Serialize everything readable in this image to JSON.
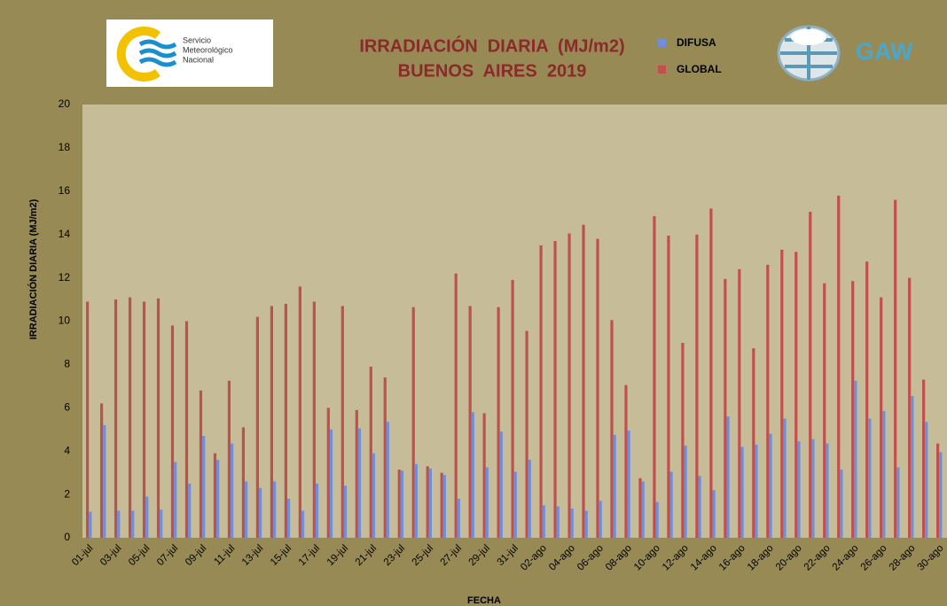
{
  "logos": {
    "smn": [
      "Servicio",
      "Meteorológico",
      "Nacional"
    ],
    "gaw": "GAW"
  },
  "chart_data": {
    "type": "bar",
    "title": "IRRADIACIÓN  DIARIA  (MJ/m2)",
    "subtitle": "BUENOS  AIRES  2019",
    "y_label": "IRRADIACIÓN DIARIA (MJ/m2)",
    "x_label": "FECHA",
    "categories": [
      "01-jul",
      null,
      "03-jul",
      null,
      "05-jul",
      null,
      "07-jul",
      null,
      "09-jul",
      null,
      "11-jul",
      null,
      "13-jul",
      null,
      "15-jul",
      null,
      "17-jul",
      null,
      "19-jul",
      null,
      "21-jul",
      null,
      "23-jul",
      null,
      "25-jul",
      null,
      "27-jul",
      null,
      "29-jul",
      null,
      "31-jul",
      null,
      "02-ago",
      null,
      "04-ago",
      null,
      "06-ago",
      null,
      "08-ago",
      null,
      "10-ago",
      null,
      "12-ago",
      null,
      "14-ago",
      null,
      "16-ago",
      null,
      "18-ago",
      null,
      "20-ago",
      null,
      "22-ago",
      null,
      "24-ago",
      null,
      "26-ago",
      null,
      "28-ago",
      null,
      "30-ago"
    ],
    "series": [
      {
        "name": "DIFUSA",
        "color": "#6f8fd8",
        "values": [
          1.2,
          5.2,
          1.25,
          1.25,
          1.9,
          1.3,
          3.5,
          2.5,
          4.7,
          3.6,
          4.35,
          2.6,
          2.3,
          2.6,
          1.8,
          1.25,
          2.5,
          5.0,
          2.4,
          5.05,
          3.9,
          5.35,
          3.1,
          3.4,
          3.2,
          2.9,
          1.8,
          5.8,
          3.25,
          4.9,
          3.05,
          3.6,
          1.5,
          1.45,
          1.35,
          1.25,
          1.7,
          4.75,
          4.95,
          2.6,
          1.65,
          3.05,
          4.25,
          2.85,
          2.2,
          5.6,
          4.2,
          4.3,
          4.8,
          5.5,
          4.45,
          4.55,
          4.35,
          3.15,
          7.25,
          5.5,
          5.85,
          3.25,
          6.55,
          5.35,
          3.95
        ]
      },
      {
        "name": "GLOBAL",
        "color": "#c0504d",
        "values": [
          10.9,
          6.2,
          11.0,
          11.1,
          10.9,
          11.05,
          9.8,
          10.0,
          6.8,
          3.9,
          7.25,
          5.1,
          10.2,
          10.7,
          10.8,
          11.6,
          10.9,
          6.0,
          10.7,
          5.9,
          7.9,
          7.4,
          3.15,
          10.65,
          3.3,
          3.0,
          12.2,
          10.7,
          5.75,
          10.65,
          11.9,
          9.55,
          13.5,
          13.7,
          14.05,
          14.45,
          13.8,
          10.05,
          7.05,
          2.75,
          14.85,
          13.95,
          9.0,
          14.0,
          15.2,
          11.95,
          12.4,
          8.75,
          12.6,
          13.3,
          13.2,
          15.05,
          11.75,
          15.8,
          11.85,
          12.75,
          11.1,
          15.6,
          12.0,
          7.3,
          4.35
        ]
      }
    ],
    "ylim": [
      0,
      20
    ],
    "yticks": [
      0,
      2,
      4,
      6,
      8,
      10,
      12,
      14,
      16,
      18,
      20
    ],
    "grid": false
  }
}
